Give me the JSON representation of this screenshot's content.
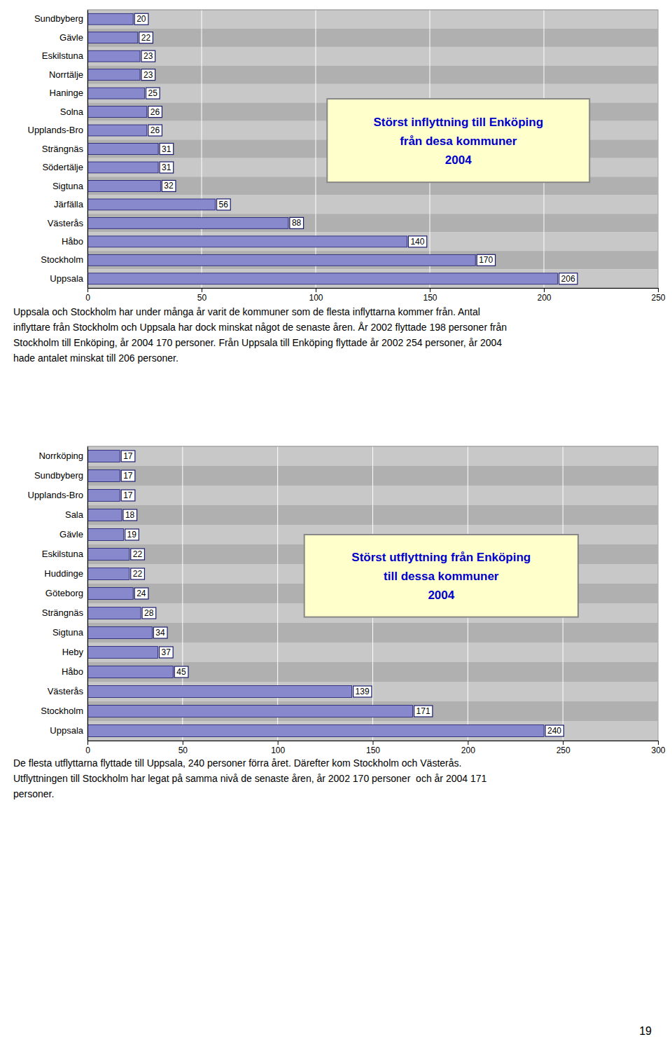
{
  "chart_data": [
    {
      "type": "bar",
      "orientation": "horizontal",
      "categories": [
        "Sundbyberg",
        "Gävle",
        "Eskilstuna",
        "Norrtälje",
        "Haninge",
        "Solna",
        "Upplands-Bro",
        "Strängnäs",
        "Södertälje",
        "Sigtuna",
        "Järfälla",
        "Västerås",
        "Håbo",
        "Stockholm",
        "Uppsala"
      ],
      "values": [
        20,
        22,
        23,
        23,
        25,
        26,
        26,
        31,
        31,
        32,
        56,
        88,
        140,
        170,
        206
      ],
      "color": "#8888cc",
      "xlim": [
        0,
        250
      ],
      "xticks": [
        0,
        50,
        100,
        150,
        200,
        250
      ],
      "grid": true,
      "data_labels": true,
      "annotations": [
        "Störst inflyttning till Enköping\nfrån desa kommuner\n2004",
        "Uppsala och Stockholm har under många år varit de kommuner som de flesta inflyttarna kommer från. Antal\ninflyttare från Stockholm och Uppsala har dock minskat något de senaste åren. År 2002 flyttade 198 personer från\nStockholm till Enköping, år 2004 170 personer. Från Uppsala till Enköping flyttade år 2002 254 personer, år 2004\nhade antalet minskat till 206 personer."
      ]
    },
    {
      "type": "bar",
      "orientation": "horizontal",
      "categories": [
        "Norrköping",
        "Sundbyberg",
        "Upplands-Bro",
        "Sala",
        "Gävle",
        "Eskilstuna",
        "Huddinge",
        "Göteborg",
        "Strängnäs",
        "Sigtuna",
        "Heby",
        "Håbo",
        "Västerås",
        "Stockholm",
        "Uppsala"
      ],
      "values": [
        17,
        17,
        17,
        18,
        19,
        22,
        22,
        24,
        28,
        34,
        37,
        45,
        139,
        171,
        240
      ],
      "color": "#8888cc",
      "xlim": [
        0,
        300
      ],
      "xticks": [
        0,
        50,
        100,
        150,
        200,
        250,
        300
      ],
      "grid": true,
      "data_labels": true,
      "annotations": [
        "Störst utflyttning från Enköping\ntill dessa kommuner\n2004",
        "De flesta utflyttarna flyttade till Uppsala, 240 personer förra året. Därefter kom Stockholm och Västerås.\nUtflyttningen till Stockholm har legat på samma nivå de senaste åren, år 2002 170 personer  och år 2004 171\npersoner.",
        "19"
      ]
    }
  ]
}
